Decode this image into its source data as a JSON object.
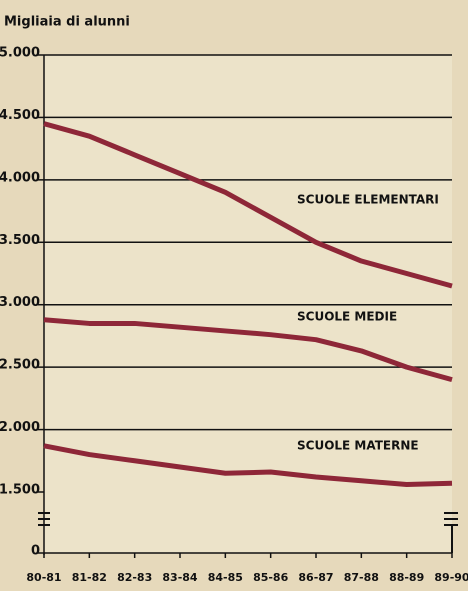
{
  "chart_data": {
    "type": "line",
    "title": "Migliaia di alunni",
    "categories": [
      "80-81",
      "81-82",
      "82-83",
      "83-84",
      "84-85",
      "85-86",
      "86-87",
      "87-88",
      "88-89",
      "89-90"
    ],
    "series": [
      {
        "name": "SCUOLE ELEMENTARI",
        "color": "#8e2738",
        "values": [
          4450,
          4350,
          4200,
          4050,
          3900,
          3700,
          3500,
          3350,
          3250,
          3150
        ]
      },
      {
        "name": "SCUOLE MEDIE",
        "color": "#8e2738",
        "values": [
          2880,
          2850,
          2850,
          2820,
          2790,
          2760,
          2720,
          2630,
          2500,
          2400
        ]
      },
      {
        "name": "SCUOLE MATERNE",
        "color": "#8e2738",
        "values": [
          1870,
          1800,
          1750,
          1700,
          1650,
          1660,
          1620,
          1590,
          1560,
          1570
        ]
      }
    ],
    "ylim": [
      0,
      5000
    ],
    "ybreak": [
      0,
      1500
    ],
    "yticks": [
      0,
      {
        "value": 1500,
        "label": "1.500"
      },
      {
        "value": 2000,
        "label": "2.000"
      },
      {
        "value": 2500,
        "label": "2.500"
      },
      {
        "value": 3000,
        "label": "3.000"
      },
      {
        "value": 3500,
        "label": "3.500"
      },
      {
        "value": 4000,
        "label": "4.000"
      },
      {
        "value": 4500,
        "label": "4.500"
      },
      {
        "value": 5000,
        "label": "5.000"
      }
    ],
    "grid": true
  }
}
